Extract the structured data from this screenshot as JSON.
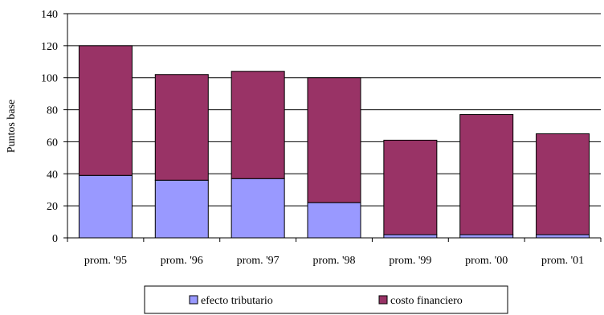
{
  "chart_data": {
    "type": "bar",
    "stacked": true,
    "title": "",
    "xlabel": "",
    "ylabel": "Puntos base",
    "ylim": [
      0,
      140
    ],
    "yticks": [
      0,
      20,
      40,
      60,
      80,
      100,
      120,
      140
    ],
    "grid": true,
    "legend_position": "bottom",
    "categories": [
      "prom. '95",
      "prom. '96",
      "prom. '97",
      "prom. '98",
      "prom. '99",
      "prom. '00",
      "prom. '01"
    ],
    "series": [
      {
        "name": "efecto tributario",
        "color": "#9999ff",
        "values": [
          39,
          36,
          37,
          22,
          2,
          2,
          2
        ]
      },
      {
        "name": "costo financiero",
        "color": "#993366",
        "values": [
          81,
          66,
          67,
          78,
          59,
          75,
          63
        ]
      }
    ]
  }
}
